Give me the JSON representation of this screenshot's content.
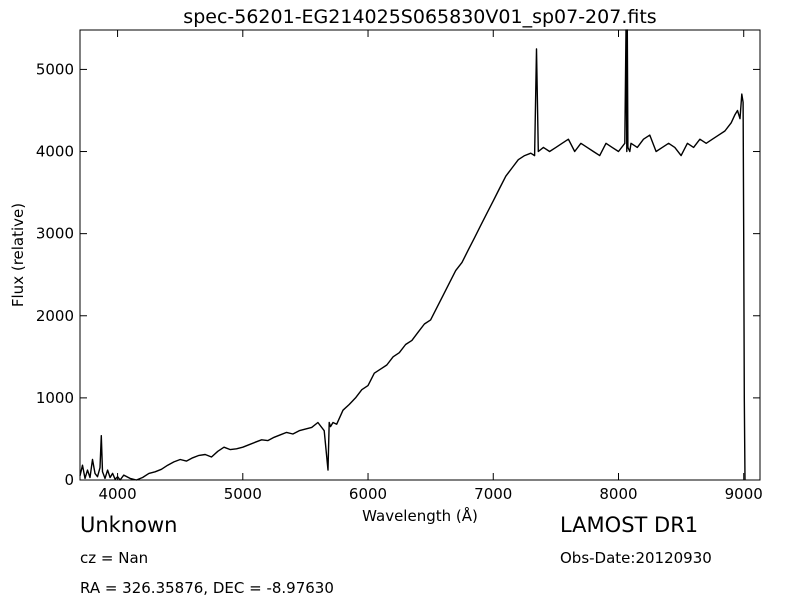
{
  "chart_data": {
    "type": "line",
    "title": "spec-56201-EG214025S065830V01_sp07-207.fits",
    "xlabel": "Wavelength (Å)",
    "ylabel": "Flux (relative)",
    "xlim": [
      3700,
      9130
    ],
    "ylim": [
      0,
      5480
    ],
    "xticks": [
      4000,
      5000,
      6000,
      7000,
      8000,
      9000
    ],
    "yticks": [
      0,
      1000,
      2000,
      3000,
      4000,
      5000
    ],
    "grid": false,
    "series": [
      {
        "color": "#000000",
        "x": [
          3700,
          3720,
          3740,
          3760,
          3780,
          3800,
          3820,
          3840,
          3860,
          3870,
          3880,
          3890,
          3900,
          3920,
          3940,
          3960,
          3980,
          4000,
          4020,
          4050,
          4100,
          4150,
          4200,
          4250,
          4300,
          4350,
          4400,
          4450,
          4500,
          4550,
          4600,
          4650,
          4700,
          4750,
          4800,
          4850,
          4900,
          4950,
          5000,
          5050,
          5100,
          5150,
          5200,
          5250,
          5300,
          5350,
          5400,
          5450,
          5500,
          5550,
          5600,
          5650,
          5680,
          5690,
          5700,
          5720,
          5750,
          5800,
          5850,
          5900,
          5950,
          6000,
          6050,
          6100,
          6150,
          6200,
          6250,
          6300,
          6350,
          6400,
          6450,
          6500,
          6550,
          6600,
          6650,
          6700,
          6750,
          6800,
          6850,
          6900,
          6950,
          7000,
          7050,
          7100,
          7150,
          7200,
          7250,
          7300,
          7330,
          7345,
          7360,
          7400,
          7450,
          7500,
          7550,
          7600,
          7650,
          7700,
          7750,
          7800,
          7850,
          7900,
          7950,
          8000,
          8050,
          8060,
          8066,
          8070,
          8075,
          8090,
          8100,
          8150,
          8200,
          8250,
          8300,
          8350,
          8400,
          8450,
          8500,
          8550,
          8600,
          8650,
          8700,
          8750,
          8800,
          8850,
          8900,
          8930,
          8950,
          8970,
          8985,
          8995,
          9000,
          9005,
          9010
        ],
        "y": [
          50,
          180,
          20,
          120,
          30,
          250,
          80,
          40,
          150,
          540,
          100,
          60,
          20,
          120,
          30,
          80,
          10,
          40,
          0,
          60,
          20,
          0,
          30,
          80,
          100,
          130,
          180,
          220,
          250,
          230,
          270,
          300,
          310,
          280,
          350,
          400,
          370,
          380,
          400,
          430,
          460,
          490,
          480,
          520,
          550,
          580,
          560,
          600,
          620,
          640,
          700,
          600,
          120,
          700,
          650,
          700,
          680,
          850,
          920,
          1000,
          1100,
          1150,
          1300,
          1350,
          1400,
          1500,
          1550,
          1650,
          1700,
          1800,
          1900,
          1950,
          2100,
          2250,
          2400,
          2550,
          2650,
          2800,
          2950,
          3100,
          3250,
          3400,
          3550,
          3700,
          3800,
          3900,
          3950,
          3980,
          3950,
          5250,
          4000,
          4050,
          4000,
          4050,
          4100,
          4150,
          4000,
          4100,
          4050,
          4000,
          3950,
          4100,
          4050,
          4000,
          4100,
          5480,
          4000,
          5480,
          4050,
          4000,
          4100,
          4050,
          4150,
          4200,
          4000,
          4050,
          4100,
          4050,
          3950,
          4100,
          4050,
          4150,
          4100,
          4150,
          4200,
          4250,
          4350,
          4450,
          4500,
          4400,
          4700,
          4600,
          3000,
          1000,
          0
        ]
      }
    ]
  },
  "footer": {
    "object_class": "Unknown",
    "redshift": "cz = Nan",
    "coordinates": "RA = 326.35876, DEC = -8.97630",
    "survey": "LAMOST DR1",
    "obs_date": "Obs-Date:20120930"
  }
}
